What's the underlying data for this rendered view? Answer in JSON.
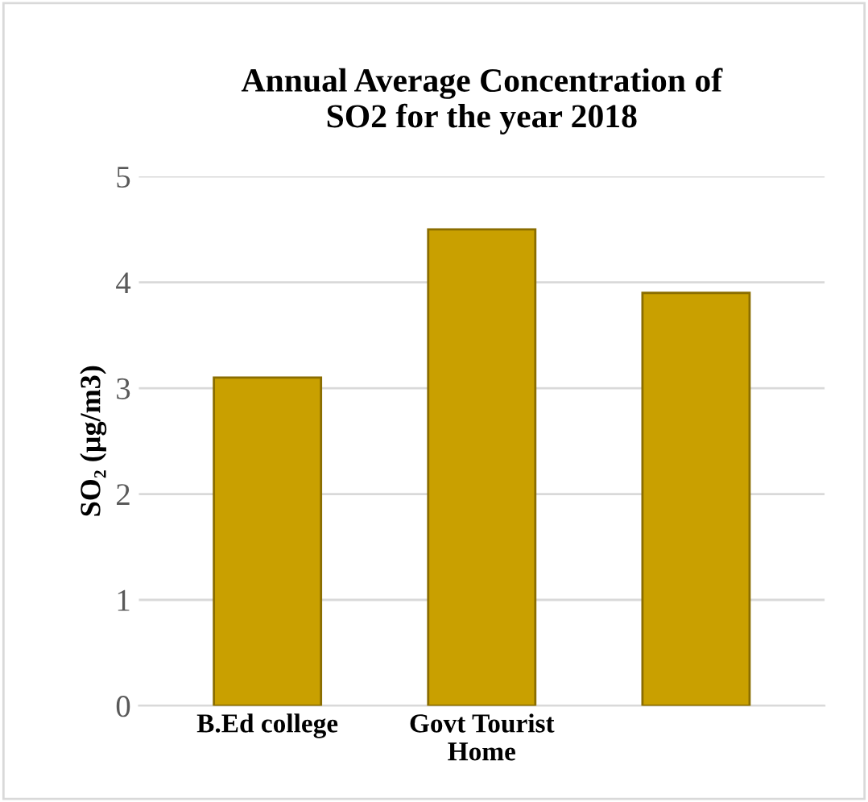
{
  "chart_data": {
    "type": "bar",
    "title": "Annual Average Concentration of\nSO2 for the year 2018",
    "ylabel": "SO₂ (µg/m3)",
    "categories": [
      "B.Ed college",
      "Govt Tourist\nHome",
      null
    ],
    "values": [
      3.1,
      4.5,
      3.9
    ],
    "color": "#c9a000",
    "ylim": [
      0,
      5
    ],
    "yticks": [
      0,
      1,
      2,
      3,
      4,
      5
    ],
    "grid": "y"
  }
}
